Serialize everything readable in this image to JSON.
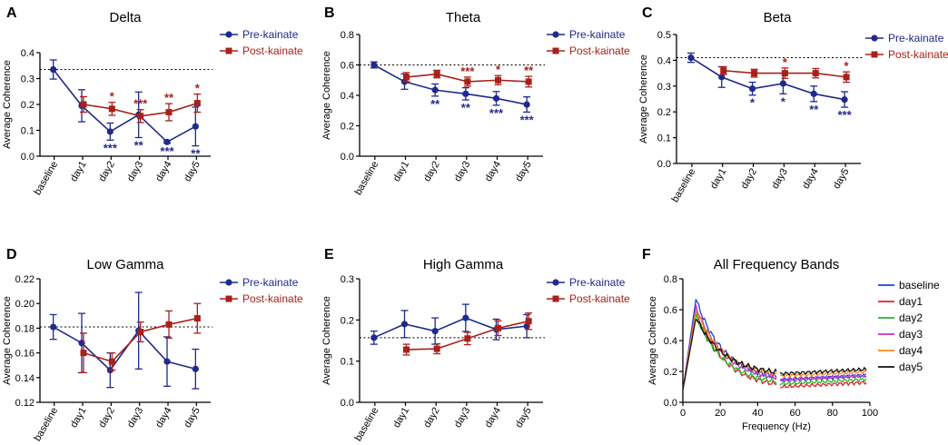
{
  "colors": {
    "pre": "#1f2a8c",
    "post": "#a8201a"
  },
  "chart_data": [
    {
      "type": "line",
      "panel": "A",
      "title": "Delta",
      "ylabel": "Average Coherence",
      "xlabel": "",
      "categories": [
        "baseline",
        "day1",
        "day2",
        "day3",
        "day4",
        "day5"
      ],
      "ylim": [
        0.0,
        0.4
      ],
      "yticks": [
        "0.0",
        "0.1",
        "0.2",
        "0.3",
        "0.4"
      ],
      "reference_line": 0.335,
      "legend": "top-right",
      "series": [
        {
          "name": "Pre-kainate",
          "color": "#1f2a8c",
          "marker": "circle",
          "values": [
            0.335,
            0.195,
            0.095,
            0.16,
            0.055,
            0.115
          ],
          "errors": [
            0.037,
            0.062,
            0.033,
            0.088,
            0.005,
            0.075
          ],
          "sig": [
            "",
            "",
            "***",
            "**",
            "***",
            "**"
          ]
        },
        {
          "name": "Post-kainate",
          "color": "#a8201a",
          "marker": "square",
          "values": [
            null,
            0.2,
            0.183,
            0.155,
            0.17,
            0.205
          ],
          "errors": [
            null,
            0.03,
            0.025,
            0.025,
            0.033,
            0.035
          ],
          "sig": [
            "",
            "",
            "*",
            "***",
            "**",
            "*"
          ]
        }
      ]
    },
    {
      "type": "line",
      "panel": "B",
      "title": "Theta",
      "ylabel": "Average Coherence",
      "xlabel": "",
      "categories": [
        "baseline",
        "day1",
        "day2",
        "day3",
        "day4",
        "day5"
      ],
      "ylim": [
        0.0,
        0.8
      ],
      "yticks": [
        "0.0",
        "0.2",
        "0.4",
        "0.6",
        "0.8"
      ],
      "reference_line": 0.6,
      "legend": "top-right",
      "series": [
        {
          "name": "Pre-kainate",
          "color": "#1f2a8c",
          "marker": "circle",
          "values": [
            0.6,
            0.49,
            0.435,
            0.41,
            0.38,
            0.34
          ],
          "errors": [
            0.02,
            0.05,
            0.04,
            0.04,
            0.045,
            0.05
          ],
          "sig": [
            "",
            "",
            "**",
            "**",
            "***",
            "***"
          ]
        },
        {
          "name": "Post-kainate",
          "color": "#a8201a",
          "marker": "square",
          "values": [
            null,
            0.52,
            0.54,
            0.49,
            0.5,
            0.49
          ],
          "errors": [
            null,
            0.03,
            0.025,
            0.03,
            0.03,
            0.035
          ],
          "sig": [
            "",
            "",
            "",
            "***",
            "*",
            "**"
          ]
        }
      ]
    },
    {
      "type": "line",
      "panel": "C",
      "title": "Beta",
      "ylabel": "Average Coherence",
      "xlabel": "",
      "categories": [
        "baseline",
        "day1",
        "day2",
        "day3",
        "day4",
        "day5"
      ],
      "ylim": [
        0.0,
        0.5
      ],
      "yticks": [
        "0.0",
        "0.1",
        "0.2",
        "0.3",
        "0.4",
        "0.5"
      ],
      "reference_line": 0.41,
      "legend": "top-right",
      "series": [
        {
          "name": "Pre-kainate",
          "color": "#1f2a8c",
          "marker": "circle",
          "values": [
            0.41,
            0.335,
            0.29,
            0.31,
            0.27,
            0.248
          ],
          "errors": [
            0.018,
            0.04,
            0.025,
            0.04,
            0.03,
            0.03
          ],
          "sig": [
            "",
            "",
            "*",
            "*",
            "**",
            "***"
          ]
        },
        {
          "name": "Post-kainate",
          "color": "#a8201a",
          "marker": "square",
          "values": [
            null,
            0.36,
            0.35,
            0.35,
            0.35,
            0.335
          ],
          "errors": [
            null,
            0.015,
            0.015,
            0.02,
            0.018,
            0.02
          ],
          "sig": [
            "",
            "",
            "",
            "*",
            "",
            "*"
          ]
        }
      ]
    },
    {
      "type": "line",
      "panel": "D",
      "title": "Low Gamma",
      "ylabel": "Average Coherence",
      "xlabel": "",
      "categories": [
        "baseline",
        "day1",
        "day2",
        "day3",
        "day4",
        "day5"
      ],
      "ylim": [
        0.12,
        0.22
      ],
      "yticks": [
        "0.12",
        "0.14",
        "0.16",
        "0.18",
        "0.20",
        "0.22"
      ],
      "reference_line": 0.181,
      "legend": "top-right",
      "series": [
        {
          "name": "Pre-kainate",
          "color": "#1f2a8c",
          "marker": "circle",
          "values": [
            0.181,
            0.168,
            0.146,
            0.178,
            0.153,
            0.147
          ],
          "errors": [
            0.01,
            0.024,
            0.014,
            0.031,
            0.02,
            0.016
          ],
          "sig": [
            "",
            "",
            "",
            "",
            "",
            ""
          ]
        },
        {
          "name": "Post-kainate",
          "color": "#a8201a",
          "marker": "square",
          "values": [
            null,
            0.16,
            0.153,
            0.177,
            0.183,
            0.188
          ],
          "errors": [
            null,
            0.016,
            0.007,
            0.008,
            0.011,
            0.012
          ],
          "sig": [
            "",
            "",
            "",
            "",
            "",
            ""
          ]
        }
      ]
    },
    {
      "type": "line",
      "panel": "E",
      "title": "High Gamma",
      "ylabel": "Average Coherence",
      "xlabel": "",
      "categories": [
        "baseline",
        "day1",
        "day2",
        "day3",
        "day4",
        "day5"
      ],
      "ylim": [
        0.0,
        0.3
      ],
      "yticks": [
        "0.0",
        "0.1",
        "0.2",
        "0.3"
      ],
      "reference_line": 0.157,
      "legend": "top-right",
      "series": [
        {
          "name": "Pre-kainate",
          "color": "#1f2a8c",
          "marker": "circle",
          "values": [
            0.157,
            0.19,
            0.173,
            0.205,
            0.177,
            0.185
          ],
          "errors": [
            0.016,
            0.033,
            0.032,
            0.033,
            0.025,
            0.028
          ],
          "sig": [
            "",
            "",
            "",
            "",
            "",
            ""
          ]
        },
        {
          "name": "Post-kainate",
          "color": "#a8201a",
          "marker": "square",
          "values": [
            null,
            0.128,
            0.13,
            0.155,
            0.18,
            0.197
          ],
          "errors": [
            null,
            0.013,
            0.012,
            0.015,
            0.018,
            0.02
          ],
          "sig": [
            "",
            "",
            "",
            "",
            "",
            ""
          ]
        }
      ]
    },
    {
      "type": "line",
      "panel": "F",
      "title": "All Frequency Bands",
      "ylabel": "Average Coherence",
      "xlabel": "Frequency (Hz)",
      "xlim": [
        0,
        100
      ],
      "xticks": [
        "0",
        "20",
        "40",
        "60",
        "80",
        "100"
      ],
      "ylim": [
        0.0,
        0.8
      ],
      "yticks": [
        "0.0",
        "0.2",
        "0.4",
        "0.6",
        "0.8"
      ],
      "gap_hz": [
        50,
        52
      ],
      "legend": "right",
      "series": [
        {
          "name": "baseline",
          "color": "#1f3fe0",
          "peak": 0.67,
          "tail": 0.175
        },
        {
          "name": "day1",
          "color": "#e0202a",
          "peak": 0.59,
          "tail": 0.13
        },
        {
          "name": "day2",
          "color": "#2ab52a",
          "peak": 0.56,
          "tail": 0.15
        },
        {
          "name": "day3",
          "color": "#c531c5",
          "peak": 0.62,
          "tail": 0.175
        },
        {
          "name": "day4",
          "color": "#f08a1a",
          "peak": 0.6,
          "tail": 0.2
        },
        {
          "name": "day5",
          "color": "#111111",
          "peak": 0.55,
          "tail": 0.215
        }
      ]
    }
  ]
}
